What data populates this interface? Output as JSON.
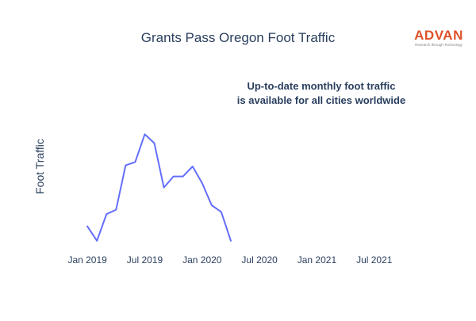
{
  "colors": {
    "line": "#636efa",
    "title": "#2a3f5f",
    "tick": "#2a3f5f",
    "annotation": "#2a3f5f",
    "brand": "#e0522b",
    "brand_sub": "#7f7f7f",
    "background": "#ffffff"
  },
  "logo": {
    "name": "ADVAN",
    "tagline": "Research through Technology"
  },
  "chart_data": {
    "type": "line",
    "title": "Grants Pass Oregon Foot Traffic",
    "ylabel": "Foot Traffic",
    "xlabel": "",
    "annotation": {
      "lines": [
        "Up-to-date monthly foot traffic",
        "is available for all cities worldwide"
      ]
    },
    "x_ticks": [
      {
        "label": "Jan 2019",
        "month_index": 0
      },
      {
        "label": "Jul 2019",
        "month_index": 6
      },
      {
        "label": "Jan 2020",
        "month_index": 12
      },
      {
        "label": "Jul 2020",
        "month_index": 18
      },
      {
        "label": "Jan 2021",
        "month_index": 24
      },
      {
        "label": "Jul 2021",
        "month_index": 30
      }
    ],
    "x_range_months": [
      -2.5,
      34
    ],
    "ylim": [
      0,
      100
    ],
    "grid": false,
    "show_y_ticks": false,
    "series": [
      {
        "months": [
          "Jan 2019",
          "Feb 2019",
          "Mar 2019",
          "Apr 2019",
          "May 2019",
          "Jun 2019",
          "Jul 2019",
          "Aug 2019",
          "Sep 2019",
          "Oct 2019",
          "Nov 2019",
          "Dec 2019",
          "Jan 2020",
          "Feb 2020",
          "Mar 2020",
          "Apr 2020"
        ],
        "month_index": [
          0,
          1,
          2,
          3,
          4,
          5,
          6,
          7,
          8,
          9,
          10,
          11,
          12,
          13,
          14,
          15
        ],
        "values": [
          16,
          3,
          27,
          31,
          71,
          74,
          99,
          91,
          51,
          61,
          61,
          70,
          55,
          35,
          29,
          3
        ]
      }
    ]
  }
}
